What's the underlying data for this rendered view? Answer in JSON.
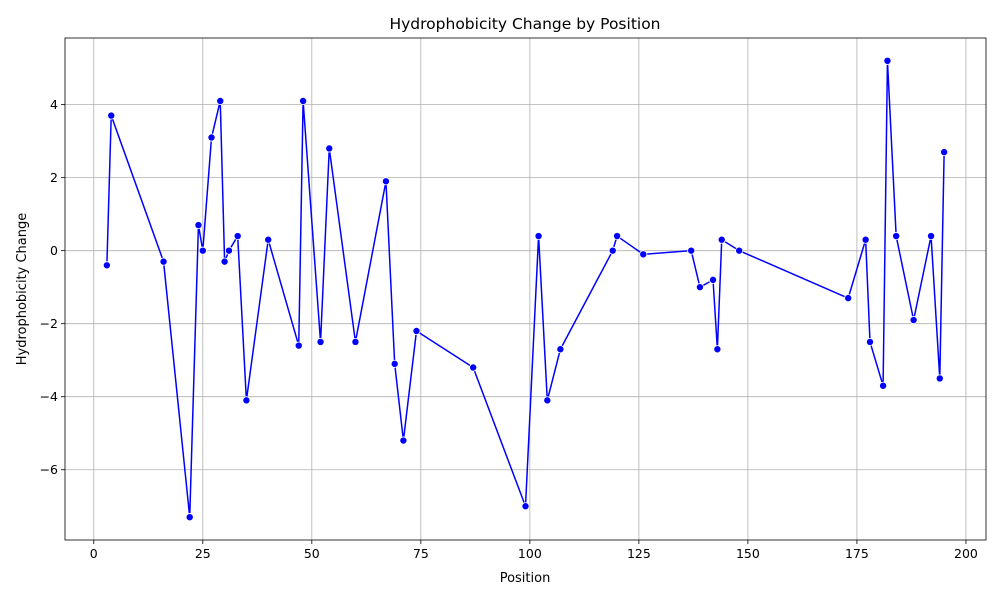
{
  "chart_data": {
    "type": "line",
    "title": "Hydrophobicity Change by Position",
    "xlabel": "Position",
    "ylabel": "Hydrophobicity Change",
    "xlim": [
      -6.6,
      204.6
    ],
    "ylim": [
      -7.925,
      5.825
    ],
    "xticks": [
      0,
      25,
      50,
      75,
      100,
      125,
      150,
      175,
      200
    ],
    "yticks": [
      -6,
      -4,
      -2,
      0,
      2,
      4
    ],
    "grid": true,
    "line_color": "#0000ff",
    "marker_color": "#0000ff",
    "series": [
      {
        "name": "Hydrophobicity Change",
        "x": [
          3,
          4,
          16,
          22,
          24,
          25,
          27,
          29,
          30,
          31,
          33,
          35,
          40,
          47,
          48,
          52,
          54,
          60,
          67,
          69,
          71,
          74,
          87,
          99,
          102,
          104,
          107,
          119,
          120,
          126,
          137,
          139,
          142,
          143,
          144,
          148,
          173,
          177,
          178,
          181,
          182,
          184,
          188,
          192,
          194,
          195
        ],
        "y": [
          -0.4,
          3.7,
          -0.3,
          -7.3,
          0.7,
          0.0,
          3.1,
          4.1,
          -0.3,
          0.0,
          0.4,
          -4.1,
          0.3,
          -2.6,
          4.1,
          -2.5,
          2.8,
          -2.5,
          1.9,
          -3.1,
          -5.2,
          -2.2,
          -3.2,
          -7.0,
          0.4,
          -4.1,
          -2.7,
          0.0,
          0.4,
          -0.1,
          0.0,
          -1.0,
          -0.8,
          -2.7,
          0.3,
          0.0,
          -1.3,
          0.3,
          -2.5,
          -3.7,
          5.2,
          0.4,
          -1.9,
          0.4,
          -3.5,
          2.7
        ]
      }
    ]
  }
}
